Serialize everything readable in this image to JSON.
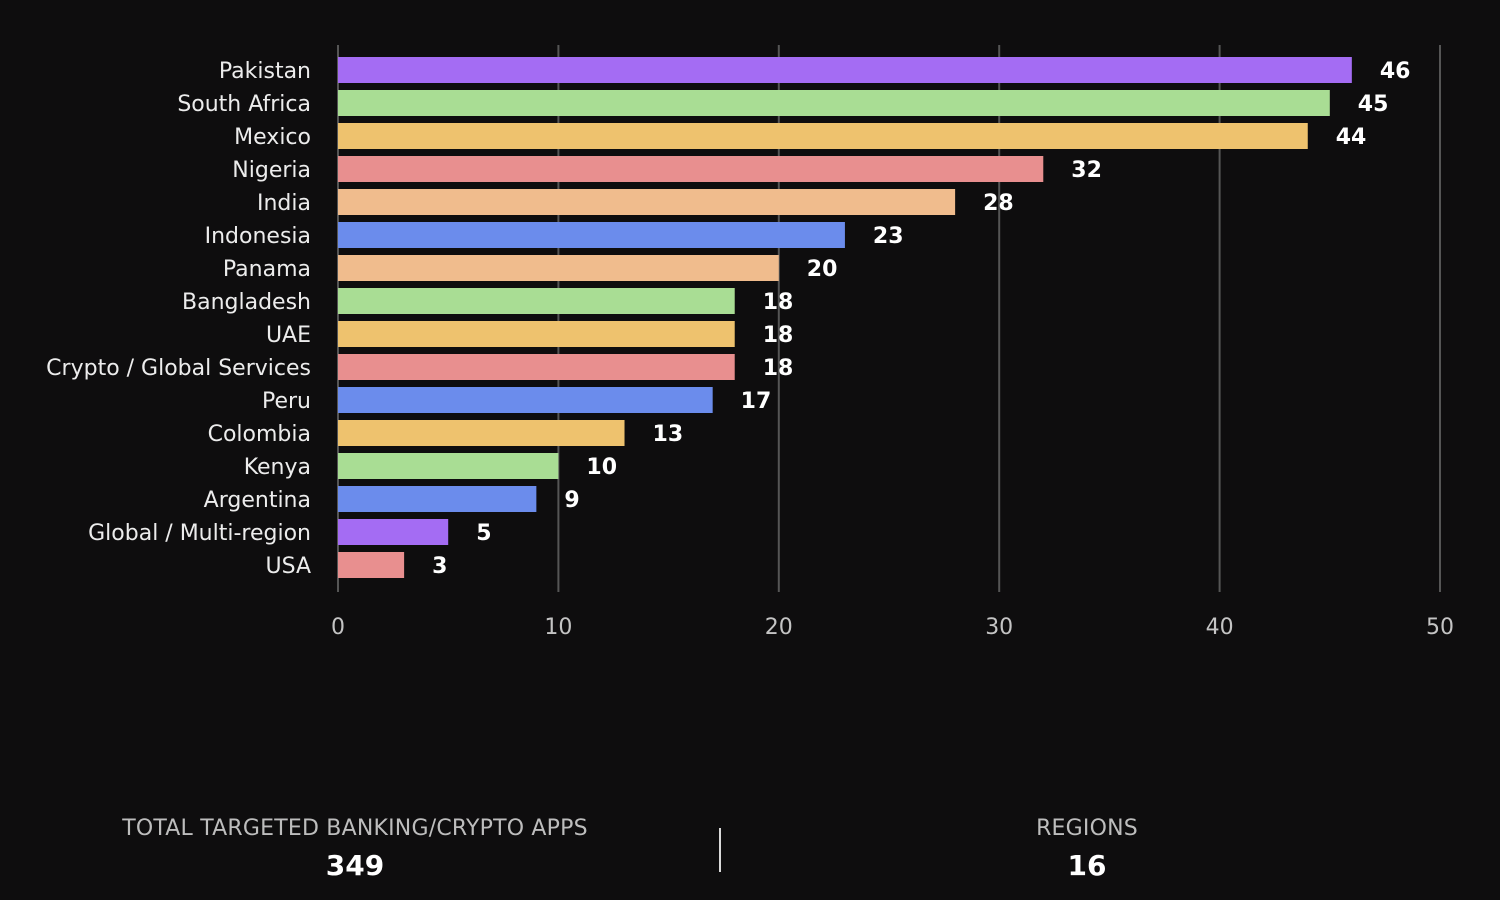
{
  "chart_data": {
    "type": "bar",
    "orientation": "horizontal",
    "categories": [
      "Pakistan",
      "South Africa",
      "Mexico",
      "Nigeria",
      "India",
      "Indonesia",
      "Panama",
      "Bangladesh",
      "UAE",
      "Crypto / Global Services",
      "Peru",
      "Colombia",
      "Kenya",
      "Argentina",
      "Global / Multi-region",
      "USA"
    ],
    "values": [
      46,
      45,
      44,
      32,
      28,
      23,
      20,
      18,
      18,
      18,
      17,
      13,
      10,
      9,
      5,
      3
    ],
    "colors": [
      "#a46cf3",
      "#a9dd94",
      "#eec26e",
      "#e88f8f",
      "#f0bc8d",
      "#6b8cec",
      "#f0bc8d",
      "#a9dd94",
      "#eec26e",
      "#e88f8f",
      "#6b8cec",
      "#eec26e",
      "#a9dd94",
      "#6b8cec",
      "#a46cf3",
      "#e88f8f"
    ],
    "xlim": [
      0,
      50
    ],
    "xticks": [
      0,
      10,
      20,
      30,
      40,
      50
    ],
    "grid": true,
    "data_labels": true
  },
  "stats": {
    "total_label": "TOTAL TARGETED BANKING/CRYPTO APPS",
    "total_value": "349",
    "regions_label": "REGIONS",
    "regions_value": "16"
  }
}
